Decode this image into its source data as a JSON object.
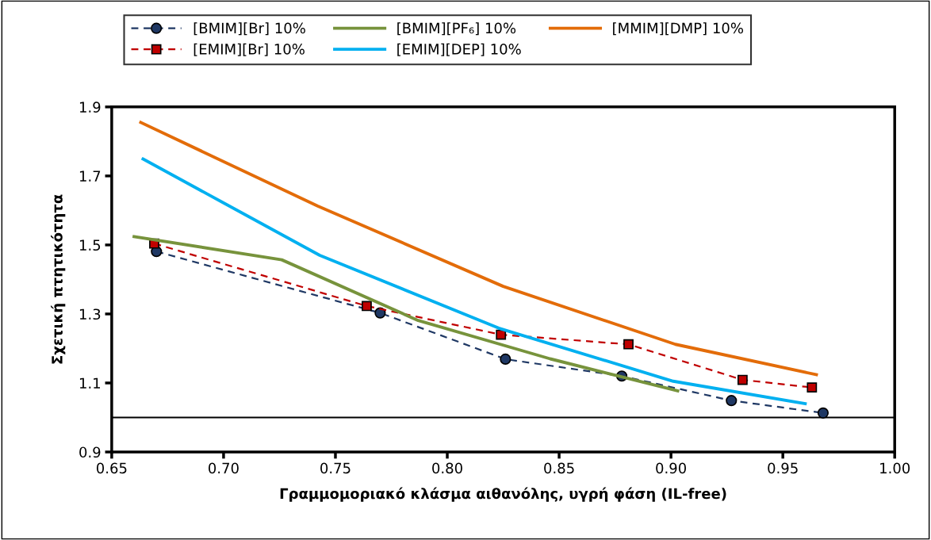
{
  "chart_data": {
    "type": "line",
    "xlabel": "Γραμμομοριακό κλάσμα αιθανόλης, υγρή φάση (IL-free)",
    "ylabel": "Σχετική πτητικότητα",
    "xlim": [
      0.65,
      1.0
    ],
    "xticks": [
      {
        "value": 0.65,
        "label": "0.65"
      },
      {
        "value": 0.7,
        "label": "0.70"
      },
      {
        "value": 0.75,
        "label": "0.75"
      },
      {
        "value": 0.8,
        "label": "0.80"
      },
      {
        "value": 0.85,
        "label": "0.85"
      },
      {
        "value": 0.9,
        "label": "0.90"
      },
      {
        "value": 0.95,
        "label": "0.95"
      },
      {
        "value": 1.0,
        "label": "1.00"
      }
    ],
    "ylim": [
      0.9,
      1.9
    ],
    "yticks": [
      0.9,
      1.1,
      1.3,
      1.5,
      1.7,
      1.9
    ],
    "grid": false,
    "legend": "top",
    "ref_lines": [
      {
        "axis": "y",
        "value": 1.0,
        "color": "#000000",
        "line_style": "solid"
      }
    ],
    "series": [
      {
        "name": "[BMIM][Br] 10%",
        "color": "#1f3864",
        "marker": "circle",
        "line_style": "dashed",
        "x": [
          0.67,
          0.77,
          0.826,
          0.878,
          0.927,
          0.968
        ],
        "values": [
          1.481,
          1.303,
          1.169,
          1.12,
          1.049,
          1.013
        ]
      },
      {
        "name": "[EMIM][Br] 10%",
        "color": "#c00000",
        "marker": "square",
        "line_style": "dashed",
        "x": [
          0.669,
          0.764,
          0.824,
          0.881,
          0.932,
          0.963
        ],
        "values": [
          1.504,
          1.323,
          1.24,
          1.212,
          1.109,
          1.087
        ]
      },
      {
        "name": "[BMIM][PF₆] 10%",
        "color": "#77933c",
        "marker": "none",
        "line_style": "solid",
        "x": [
          0.66,
          0.726,
          0.787,
          0.846,
          0.903
        ],
        "values": [
          1.524,
          1.457,
          1.281,
          1.17,
          1.077
        ]
      },
      {
        "name": "[EMIM][DEP] 10%",
        "color": "#00b0f0",
        "marker": "none",
        "line_style": "solid",
        "x": [
          0.664,
          0.743,
          0.823,
          0.901,
          0.96
        ],
        "values": [
          1.749,
          1.47,
          1.259,
          1.105,
          1.04
        ]
      },
      {
        "name": "[MMIM][DMP] 10%",
        "color": "#e36c09",
        "marker": "none",
        "line_style": "solid",
        "x": [
          0.663,
          0.742,
          0.825,
          0.902,
          0.965
        ],
        "values": [
          1.855,
          1.613,
          1.38,
          1.212,
          1.124
        ]
      }
    ]
  }
}
